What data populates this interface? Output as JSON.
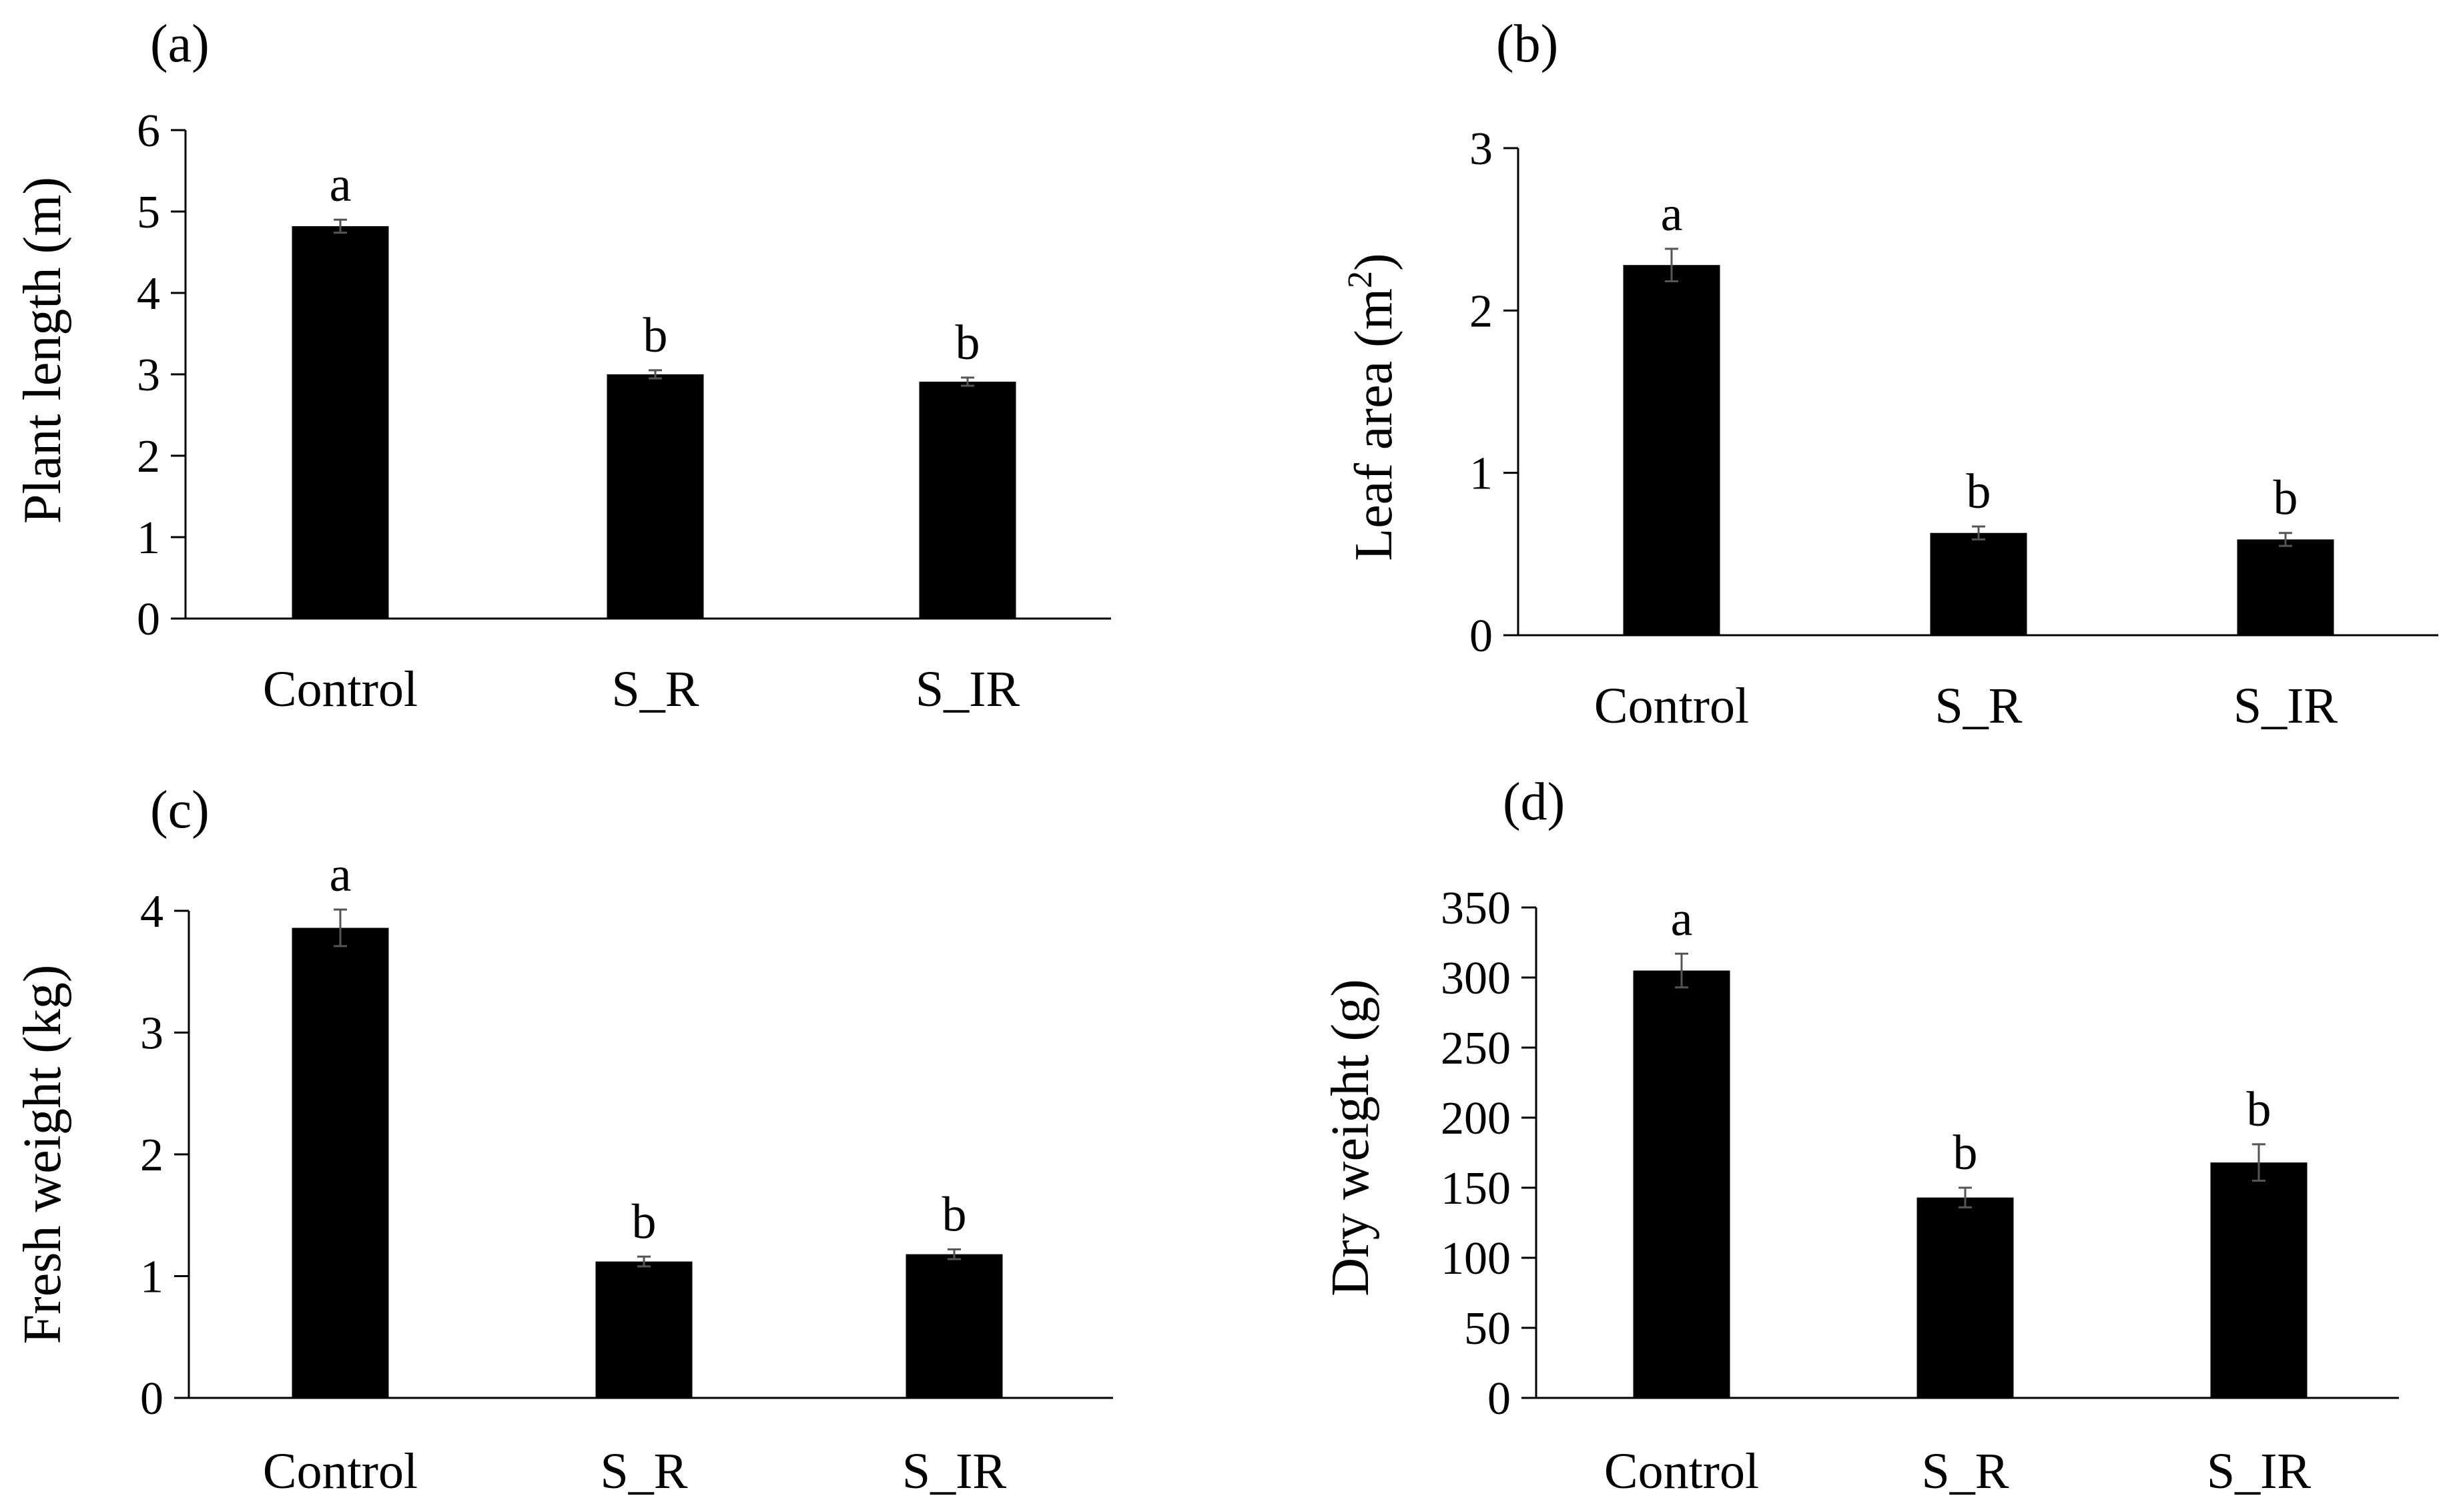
{
  "figure": {
    "description_colors": {
      "bar": "#000000",
      "axis": "#000000",
      "error_bar": "#555555",
      "background": "#ffffff"
    }
  },
  "chart_data": [
    {
      "panel": "(a)",
      "type": "bar",
      "title": "",
      "categories": [
        "Control",
        "S_R",
        "S_IR"
      ],
      "values": [
        4.82,
        3.0,
        2.91
      ],
      "errors": [
        0.08,
        0.05,
        0.05
      ],
      "significance_letters": [
        "a",
        "b",
        "b"
      ],
      "xlabel": "",
      "ylabel": "Plant length  (m)",
      "ylim": [
        0,
        6
      ],
      "yticks": [
        0,
        1,
        2,
        3,
        4,
        5,
        6
      ],
      "ytick_labels": [
        "0",
        "1",
        "2",
        "3",
        "4",
        "5",
        "6"
      ],
      "grid": false
    },
    {
      "panel": "(b)",
      "type": "bar",
      "title": "",
      "categories": [
        "Control",
        "S_R",
        "S_IR"
      ],
      "values": [
        2.28,
        0.63,
        0.59
      ],
      "errors": [
        0.1,
        0.04,
        0.04
      ],
      "significance_letters": [
        "a",
        "b",
        "b"
      ],
      "xlabel": "",
      "ylabel": "Leaf area (m",
      "ylabel_sup": "2",
      "ylabel_end": ")",
      "ylim": [
        0,
        3
      ],
      "yticks": [
        0,
        1,
        2,
        3
      ],
      "ytick_labels": [
        "0",
        "1",
        "2",
        "3"
      ],
      "grid": false
    },
    {
      "panel": "(c)",
      "type": "bar",
      "title": "",
      "categories": [
        "Control",
        "S_R",
        "S_IR"
      ],
      "values": [
        3.86,
        1.12,
        1.18
      ],
      "errors": [
        0.15,
        0.04,
        0.04
      ],
      "significance_letters": [
        "a",
        "b",
        "b"
      ],
      "xlabel": "",
      "ylabel": "Fresh weight (kg)",
      "ylim": [
        0,
        4
      ],
      "yticks": [
        0,
        1,
        2,
        3,
        4
      ],
      "ytick_labels": [
        "0",
        "1",
        "2",
        "3",
        "4"
      ],
      "grid": false
    },
    {
      "panel": "(d)",
      "type": "bar",
      "title": "",
      "categories": [
        "Control",
        "S_R",
        "S_IR"
      ],
      "values": [
        305,
        143,
        168
      ],
      "errors": [
        12,
        7,
        13
      ],
      "significance_letters": [
        "a",
        "b",
        "b"
      ],
      "xlabel": "",
      "ylabel": "Dry weight (g)",
      "ylim": [
        0,
        350
      ],
      "yticks": [
        0,
        50,
        100,
        150,
        200,
        250,
        300,
        350
      ],
      "ytick_labels": [
        "0",
        "50",
        "100",
        "150",
        "200",
        "250",
        "300",
        "350"
      ],
      "grid": false
    }
  ]
}
